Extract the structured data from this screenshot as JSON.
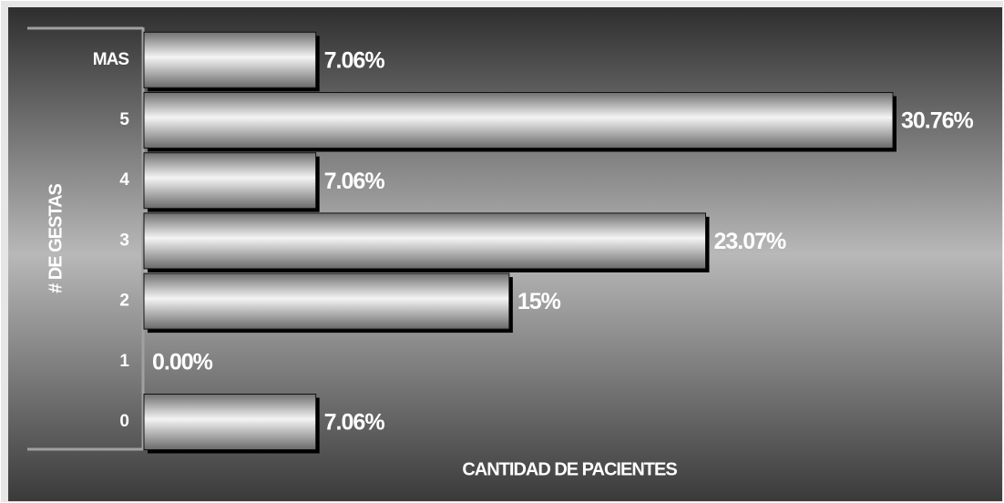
{
  "chart_data": {
    "type": "barh",
    "xlabel": "CANTIDAD DE PACIENTES",
    "ylabel": "# DE GESTAS",
    "categories": [
      "0",
      "1",
      "2",
      "3",
      "4",
      "5",
      "MAS"
    ],
    "values": [
      7.06,
      0.0,
      15,
      23.07,
      7.06,
      30.76,
      7.06
    ],
    "value_labels": [
      "7.06%",
      "0.00%",
      "15%",
      "23.07%",
      "7.06%",
      "30.76%",
      "7.06%"
    ],
    "color": "#d8d8d8"
  }
}
